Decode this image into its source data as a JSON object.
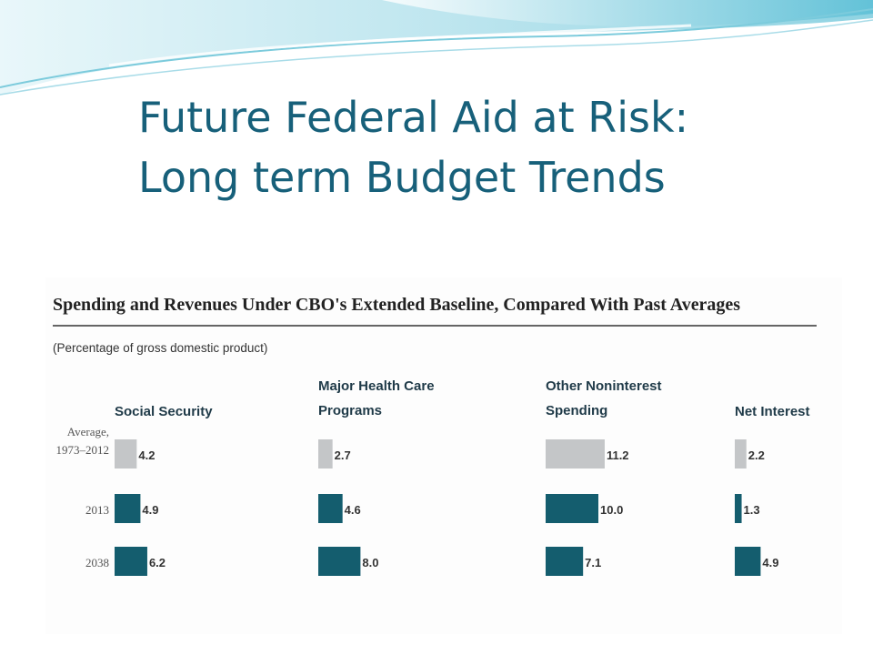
{
  "slide": {
    "title_line1": "Future Federal Aid at Risk:",
    "title_line2": "Long term Budget Trends"
  },
  "colors": {
    "title": "#17607a",
    "bar_average": "#c4c6c8",
    "bar_projection": "#145d6e",
    "wave_light": "#bfe6ef",
    "wave_dark": "#6fc6d8"
  },
  "chart_data": {
    "type": "bar",
    "orientation": "horizontal",
    "title": "Spending and Revenues Under CBO's Extended Baseline, Compared With Past Averages",
    "subtitle": "(Percentage of gross domestic product)",
    "categories": [
      [
        "Average,",
        "1973–2012"
      ],
      [
        "2013"
      ],
      [
        "2038"
      ]
    ],
    "panels": [
      {
        "name": "Social Security",
        "values": [
          4.2,
          4.9,
          6.2
        ]
      },
      {
        "name": "Major Health Care Programs",
        "name_lines": [
          "Major Health Care",
          "Programs"
        ],
        "values": [
          2.7,
          4.6,
          8.0
        ]
      },
      {
        "name": "Other Noninterest Spending",
        "name_lines": [
          "Other Noninterest",
          "Spending"
        ],
        "values": [
          11.2,
          10.0,
          7.1
        ]
      },
      {
        "name": "Net Interest",
        "values": [
          2.2,
          1.3,
          4.9
        ]
      }
    ],
    "value_labels": [
      [
        "4.2",
        "4.9",
        "6.2"
      ],
      [
        "2.7",
        "4.6",
        "8.0"
      ],
      [
        "11.2",
        "10.0",
        "7.1"
      ],
      [
        "2.2",
        "1.3",
        "4.9"
      ]
    ],
    "grid": false,
    "legend": "none"
  }
}
